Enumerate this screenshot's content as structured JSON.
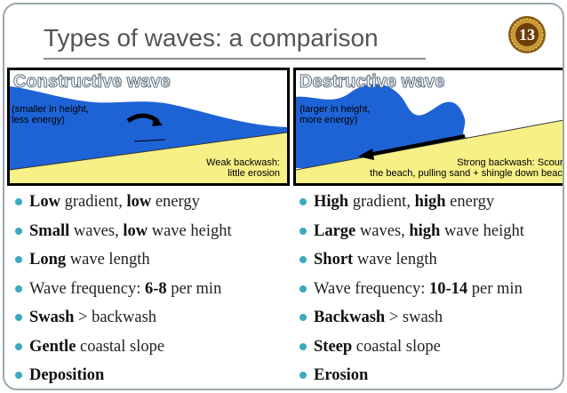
{
  "title": "Types of waves: a comparison",
  "slide_number": "13",
  "colors": {
    "sea": "#1e63d6",
    "beach": "#f6f086",
    "bullet": "#3ba9c0",
    "badge": "#c89a33"
  },
  "constructive": {
    "heading": "Constructive wave",
    "note_line1": "(smaller in height,",
    "note_line2": "less energy)",
    "caption_line1": "Weak backwash:",
    "caption_line2": "little erosion"
  },
  "destructive": {
    "heading": "Destructive wave",
    "note_line1": "(larger in height,",
    "note_line2": "more energy)",
    "caption_line1": "Strong backwash: Scours",
    "caption_line2": "the beach, pulling sand + shingle down beach"
  },
  "left_list": [
    {
      "bold": "Low",
      "a": " gradient, ",
      "bold2": "low",
      "b": " energy"
    },
    {
      "bold": "Small",
      "a": " waves, ",
      "bold2": "low",
      "b": " wave height"
    },
    {
      "bold": "Long",
      "a": " wave length",
      "bold2": "",
      "b": ""
    },
    {
      "bold": "",
      "a": "Wave frequency: ",
      "bold2": "6-8",
      "b": " per min"
    },
    {
      "bold": "Swash",
      "a": " > backwash",
      "bold2": "",
      "b": ""
    },
    {
      "bold": "Gentle",
      "a": " coastal slope",
      "bold2": "",
      "b": ""
    },
    {
      "bold": "Deposition",
      "a": "",
      "bold2": "",
      "b": ""
    }
  ],
  "right_list": [
    {
      "bold": "High",
      "a": " gradient, ",
      "bold2": "high",
      "b": " energy"
    },
    {
      "bold": "Large",
      "a": " waves, ",
      "bold2": "high",
      "b": " wave height"
    },
    {
      "bold": "Short",
      "a": " wave length",
      "bold2": "",
      "b": ""
    },
    {
      "bold": "",
      "a": "Wave frequency: ",
      "bold2": "10-14",
      "b": " per min"
    },
    {
      "bold": "Backwash",
      "a": " > swash",
      "bold2": "",
      "b": ""
    },
    {
      "bold": "Steep",
      "a": " coastal slope",
      "bold2": "",
      "b": ""
    },
    {
      "bold": "Erosion",
      "a": "",
      "bold2": "",
      "b": ""
    }
  ]
}
